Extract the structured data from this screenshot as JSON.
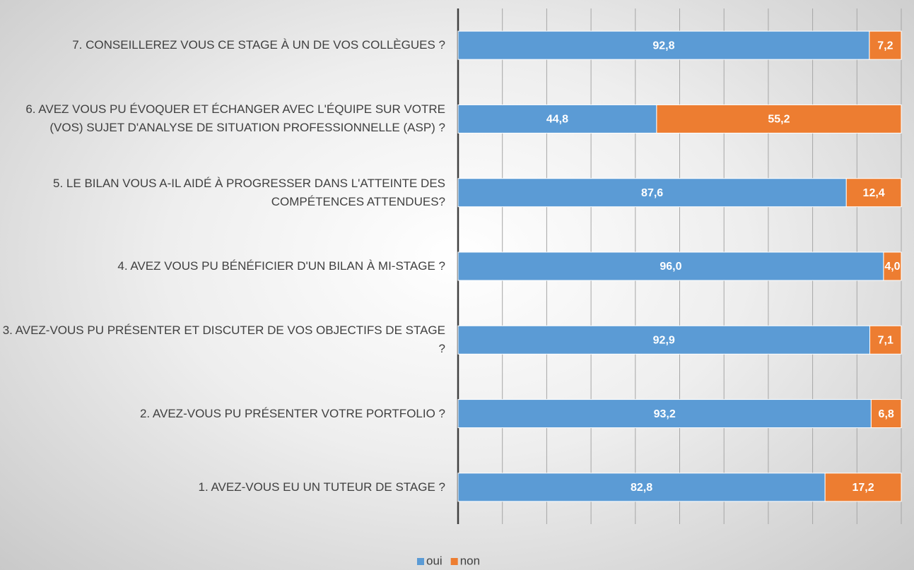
{
  "chart_data": {
    "type": "stacked-bar-horizontal",
    "categories": [
      "7. CONSEILLEREZ VOUS CE STAGE À UN DE VOS COLLÈGUES ?",
      "6. AVEZ VOUS PU ÉVOQUER ET ÉCHANGER AVEC L'ÉQUIPE SUR VOTRE (VOS) SUJET D'ANALYSE DE SITUATION PROFESSIONNELLE (ASP) ?",
      "5. LE BILAN VOUS A-IL AIDÉ À PROGRESSER DANS L'ATTEINTE DES COMPÉTENCES ATTENDUES?",
      "4. AVEZ VOUS PU BÉNÉFICIER D'UN BILAN À MI-STAGE ?",
      "3. AVEZ-VOUS PU PRÉSENTER ET DISCUTER DE VOS OBJECTIFS DE STAGE ?",
      "2. AVEZ-VOUS PU PRÉSENTER VOTRE PORTFOLIO ?",
      "1. AVEZ-VOUS EU UN TUTEUR DE STAGE ?"
    ],
    "series": [
      {
        "name": "oui",
        "color": "#5b9bd5",
        "values": [
          92.8,
          44.8,
          87.6,
          96.0,
          92.9,
          93.2,
          82.8
        ],
        "value_labels": [
          "92,8",
          "44,8",
          "87,6",
          "96,0",
          "92,9",
          "93,2",
          "82,8"
        ]
      },
      {
        "name": "non",
        "color": "#ed7d31",
        "values": [
          7.2,
          55.2,
          12.4,
          4.0,
          7.1,
          6.8,
          17.2
        ],
        "value_labels": [
          "7,2",
          "55,2",
          "12,4",
          "4,0",
          "7,1",
          "6,8",
          "17,2"
        ]
      }
    ],
    "xlim": [
      0,
      100
    ],
    "xticks": [
      0,
      10,
      20,
      30,
      40,
      50,
      60,
      70,
      80,
      90,
      100
    ],
    "grid": true,
    "legend": "bottom"
  }
}
